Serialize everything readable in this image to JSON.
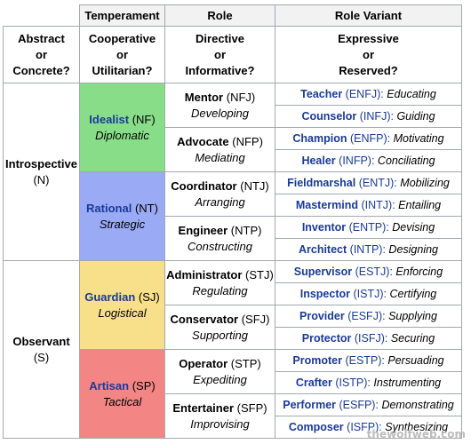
{
  "headers": {
    "temperament": "Temperament",
    "role": "Role",
    "role_variant": "Role Variant"
  },
  "subheaders": {
    "abstract": [
      "Abstract",
      "or",
      "Concrete?"
    ],
    "cooperative": [
      "Cooperative",
      "or",
      "Utilitarian?"
    ],
    "directive": [
      "Directive",
      "or",
      "Informative?"
    ],
    "expressive": [
      "Expressive",
      "or",
      "Reserved?"
    ]
  },
  "groups": [
    {
      "name": "Introspective",
      "code": "(N)",
      "temperaments": [
        {
          "name": "Idealist",
          "code": "(NF)",
          "desc": "Diplomatic",
          "color": "#88dd88",
          "roles": [
            {
              "name": "Mentor",
              "code": "(NFJ)",
              "desc": "Developing",
              "variants": [
                {
                  "name": "Teacher",
                  "code": "(ENFJ):",
                  "desc": "Educating"
                },
                {
                  "name": "Counselor",
                  "code": "(INFJ):",
                  "desc": "Guiding"
                }
              ]
            },
            {
              "name": "Advocate",
              "code": "(NFP)",
              "desc": "Mediating",
              "variants": [
                {
                  "name": "Champion",
                  "code": "(ENFP):",
                  "desc": "Motivating"
                },
                {
                  "name": "Healer",
                  "code": "(INFP):",
                  "desc": "Conciliating"
                }
              ]
            }
          ]
        },
        {
          "name": "Rational",
          "code": "(NT)",
          "desc": "Strategic",
          "color": "#9aaaf5",
          "roles": [
            {
              "name": "Coordinator",
              "code": "(NTJ)",
              "desc": "Arranging",
              "variants": [
                {
                  "name": "Fieldmarshal",
                  "code": "(ENTJ):",
                  "desc": "Mobilizing"
                },
                {
                  "name": "Mastermind",
                  "code": "(INTJ):",
                  "desc": "Entailing"
                }
              ]
            },
            {
              "name": "Engineer",
              "code": "(NTP)",
              "desc": "Constructing",
              "variants": [
                {
                  "name": "Inventor",
                  "code": "(ENTP):",
                  "desc": "Devising"
                },
                {
                  "name": "Architect",
                  "code": "(INTP):",
                  "desc": "Designing"
                }
              ]
            }
          ]
        }
      ]
    },
    {
      "name": "Observant",
      "code": "(S)",
      "temperaments": [
        {
          "name": "Guardian",
          "code": "(SJ)",
          "desc": "Logistical",
          "color": "#f8df8a",
          "roles": [
            {
              "name": "Administrator",
              "code": "(STJ)",
              "desc": "Regulating",
              "variants": [
                {
                  "name": "Supervisor",
                  "code": "(ESTJ):",
                  "desc": "Enforcing"
                },
                {
                  "name": "Inspector",
                  "code": "(ISTJ):",
                  "desc": "Certifying"
                }
              ]
            },
            {
              "name": "Conservator",
              "code": "(SFJ)",
              "desc": "Supporting",
              "variants": [
                {
                  "name": "Provider",
                  "code": "(ESFJ):",
                  "desc": "Supplying"
                },
                {
                  "name": "Protector",
                  "code": "(ISFJ):",
                  "desc": "Securing"
                }
              ]
            }
          ]
        },
        {
          "name": "Artisan",
          "code": "(SP)",
          "desc": "Tactical",
          "color": "#f38585",
          "roles": [
            {
              "name": "Operator",
              "code": "(STP)",
              "desc": "Expediting",
              "variants": [
                {
                  "name": "Promoter",
                  "code": "(ESTP):",
                  "desc": "Persuading"
                },
                {
                  "name": "Crafter",
                  "code": "(ISTP):",
                  "desc": "Instrumenting"
                }
              ]
            },
            {
              "name": "Entertainer",
              "code": "(SFP)",
              "desc": "Improvising",
              "variants": [
                {
                  "name": "Performer",
                  "code": "(ESFP):",
                  "desc": "Demonstrating"
                },
                {
                  "name": "Composer",
                  "code": "(ISFP):",
                  "desc": "Synthesizing"
                }
              ]
            }
          ]
        }
      ]
    }
  ],
  "watermark": "thewolfweb.com"
}
